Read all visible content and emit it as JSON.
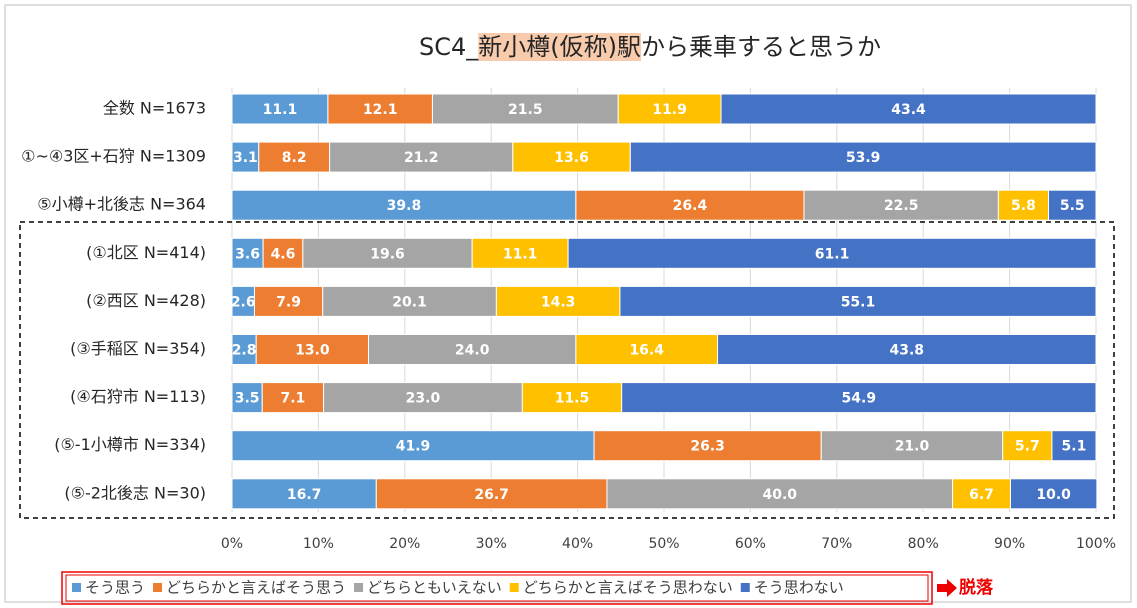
{
  "chart_data": {
    "type": "stacked-bar-horizontal",
    "title": "SC4_新小樽(仮称)駅から乗車すると思うか",
    "categories": [
      "全数 N=1673",
      "①~④3区+石狩 N=1309",
      "⑤小樽+北後志 N=364",
      "(①北区 N=414)",
      "(②西区 N=428)",
      "(③手稲区 N=354)",
      "(④石狩市 N=113)",
      "(⑤-1小樽市 N=334)",
      "(⑤-2北後志 N=30)"
    ],
    "series": [
      {
        "name": "そう思う",
        "color": "#5b9bd5",
        "values": [
          11.1,
          3.1,
          39.8,
          3.6,
          2.6,
          2.8,
          3.5,
          41.9,
          16.7
        ],
        "value_labels": [
          "11.1",
          "3.1",
          "39.8",
          "3.6",
          "2.6",
          "2.8",
          "3.5",
          "41.9",
          "16.7"
        ]
      },
      {
        "name": "どちらかと言えばそう思う",
        "color": "#ed7d31",
        "values": [
          12.1,
          8.2,
          26.4,
          4.6,
          7.9,
          13.0,
          7.1,
          26.3,
          26.7
        ],
        "value_labels": [
          "12.1",
          "8.2",
          "26.4",
          "4.6",
          "7.9",
          "13.0",
          "7.1",
          "26.3",
          "26.7"
        ]
      },
      {
        "name": "どちらともいえない",
        "color": "#a5a5a5",
        "values": [
          21.5,
          21.2,
          22.5,
          19.6,
          20.1,
          24.0,
          23.0,
          21.0,
          40.0
        ],
        "value_labels": [
          "21.5",
          "21.2",
          "22.5",
          "19.6",
          "20.1",
          "24.0",
          "23.0",
          "21.0",
          "40.0"
        ]
      },
      {
        "name": "どちらかと言えばそう思わない",
        "color": "#ffc000",
        "values": [
          11.9,
          13.6,
          5.8,
          11.1,
          14.3,
          16.4,
          11.5,
          5.7,
          6.7
        ],
        "value_labels": [
          "11.9",
          "13.6",
          "5.8",
          "11.1",
          "14.3",
          "16.4",
          "11.5",
          "5.7",
          "6.7"
        ]
      },
      {
        "name": "そう思わない",
        "color": "#4472c4",
        "values": [
          43.4,
          53.9,
          5.5,
          61.1,
          55.1,
          43.8,
          54.9,
          5.1,
          10.0
        ],
        "value_labels": [
          "43.4",
          "53.9",
          "5.5",
          "61.1",
          "55.1",
          "43.8",
          "54.9",
          "5.1",
          "10.0"
        ]
      }
    ],
    "xlim": [
      0,
      100
    ],
    "xticks": [
      {
        "value": 0,
        "label": "0%"
      },
      {
        "value": 10,
        "label": "10%"
      },
      {
        "value": 20,
        "label": "20%"
      },
      {
        "value": 30,
        "label": "30%"
      },
      {
        "value": 40,
        "label": "40%"
      },
      {
        "value": 50,
        "label": "50%"
      },
      {
        "value": 60,
        "label": "60%"
      },
      {
        "value": 70,
        "label": "70%"
      },
      {
        "value": 80,
        "label": "80%"
      },
      {
        "value": 90,
        "label": "90%"
      },
      {
        "value": 100,
        "label": "100%"
      }
    ],
    "grid": true,
    "legend": "bottom",
    "annotation": "脱落"
  }
}
